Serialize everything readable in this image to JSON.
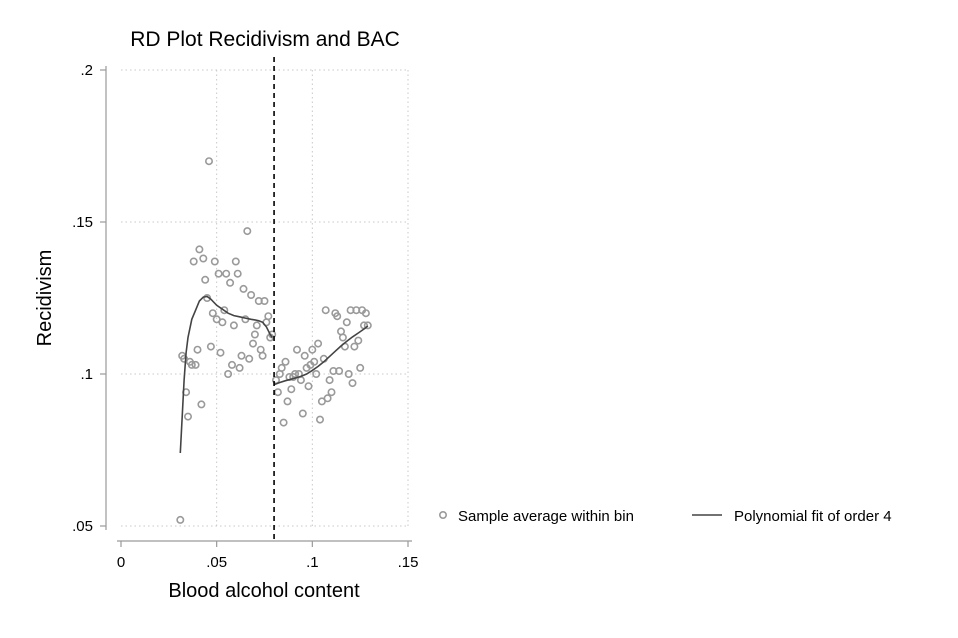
{
  "chart_data": {
    "type": "scatter",
    "title": "RD Plot Recidivism and BAC",
    "xlabel": "Blood alcohol content",
    "ylabel": "Recidivism",
    "xlim": [
      0,
      0.15
    ],
    "ylim": [
      0.05,
      0.2
    ],
    "x_ticks": [
      0,
      0.05,
      0.1,
      0.15
    ],
    "x_tick_labels": [
      "0",
      ".05",
      ".1",
      ".15"
    ],
    "y_ticks": [
      0.05,
      0.1,
      0.15,
      0.2
    ],
    "y_tick_labels": [
      ".05",
      ".1",
      ".15",
      ".2"
    ],
    "grid": true,
    "cutoff": 0.08,
    "legend_position": "right",
    "colors": {
      "points": "#9a9a9a",
      "fit": "#444444",
      "cutoff": "#000000"
    },
    "series": [
      {
        "name": "Sample average within bin",
        "type": "scatter",
        "points": [
          [
            0.031,
            0.052
          ],
          [
            0.032,
            0.106
          ],
          [
            0.033,
            0.105
          ],
          [
            0.034,
            0.094
          ],
          [
            0.035,
            0.086
          ],
          [
            0.036,
            0.104
          ],
          [
            0.037,
            0.103
          ],
          [
            0.038,
            0.137
          ],
          [
            0.039,
            0.103
          ],
          [
            0.04,
            0.108
          ],
          [
            0.041,
            0.141
          ],
          [
            0.042,
            0.09
          ],
          [
            0.043,
            0.138
          ],
          [
            0.044,
            0.131
          ],
          [
            0.045,
            0.125
          ],
          [
            0.046,
            0.17
          ],
          [
            0.047,
            0.109
          ],
          [
            0.048,
            0.12
          ],
          [
            0.049,
            0.137
          ],
          [
            0.05,
            0.118
          ],
          [
            0.051,
            0.133
          ],
          [
            0.052,
            0.107
          ],
          [
            0.053,
            0.117
          ],
          [
            0.054,
            0.121
          ],
          [
            0.055,
            0.133
          ],
          [
            0.056,
            0.1
          ],
          [
            0.057,
            0.13
          ],
          [
            0.058,
            0.103
          ],
          [
            0.059,
            0.116
          ],
          [
            0.06,
            0.137
          ],
          [
            0.061,
            0.133
          ],
          [
            0.062,
            0.102
          ],
          [
            0.063,
            0.106
          ],
          [
            0.064,
            0.128
          ],
          [
            0.065,
            0.118
          ],
          [
            0.066,
            0.147
          ],
          [
            0.067,
            0.105
          ],
          [
            0.068,
            0.126
          ],
          [
            0.069,
            0.11
          ],
          [
            0.07,
            0.113
          ],
          [
            0.071,
            0.116
          ],
          [
            0.072,
            0.124
          ],
          [
            0.073,
            0.108
          ],
          [
            0.074,
            0.106
          ],
          [
            0.075,
            0.124
          ],
          [
            0.076,
            0.117
          ],
          [
            0.077,
            0.119
          ],
          [
            0.078,
            0.112
          ],
          [
            0.079,
            0.113
          ],
          [
            0.081,
            0.098
          ],
          [
            0.082,
            0.094
          ],
          [
            0.083,
            0.1
          ],
          [
            0.084,
            0.102
          ],
          [
            0.085,
            0.084
          ],
          [
            0.086,
            0.104
          ],
          [
            0.087,
            0.091
          ],
          [
            0.088,
            0.099
          ],
          [
            0.089,
            0.095
          ],
          [
            0.09,
            0.099
          ],
          [
            0.091,
            0.1
          ],
          [
            0.092,
            0.108
          ],
          [
            0.093,
            0.1
          ],
          [
            0.094,
            0.098
          ],
          [
            0.095,
            0.087
          ],
          [
            0.096,
            0.106
          ],
          [
            0.097,
            0.102
          ],
          [
            0.098,
            0.096
          ],
          [
            0.099,
            0.103
          ],
          [
            0.1,
            0.108
          ],
          [
            0.101,
            0.104
          ],
          [
            0.102,
            0.1
          ],
          [
            0.103,
            0.11
          ],
          [
            0.104,
            0.085
          ],
          [
            0.105,
            0.091
          ],
          [
            0.106,
            0.105
          ],
          [
            0.107,
            0.121
          ],
          [
            0.108,
            0.092
          ],
          [
            0.109,
            0.098
          ],
          [
            0.11,
            0.094
          ],
          [
            0.111,
            0.101
          ],
          [
            0.112,
            0.12
          ],
          [
            0.113,
            0.119
          ],
          [
            0.114,
            0.101
          ],
          [
            0.115,
            0.114
          ],
          [
            0.116,
            0.112
          ],
          [
            0.117,
            0.109
          ],
          [
            0.118,
            0.117
          ],
          [
            0.119,
            0.1
          ],
          [
            0.12,
            0.121
          ],
          [
            0.121,
            0.097
          ],
          [
            0.122,
            0.109
          ],
          [
            0.123,
            0.121
          ],
          [
            0.124,
            0.111
          ],
          [
            0.125,
            0.102
          ],
          [
            0.126,
            0.121
          ],
          [
            0.127,
            0.116
          ],
          [
            0.128,
            0.12
          ],
          [
            0.129,
            0.116
          ]
        ]
      },
      {
        "name": "Polynomial fit of order 4",
        "type": "line",
        "segments": [
          [
            [
              0.031,
              0.074
            ],
            [
              0.032,
              0.086
            ],
            [
              0.033,
              0.098
            ],
            [
              0.034,
              0.107
            ],
            [
              0.035,
              0.112
            ],
            [
              0.037,
              0.118
            ],
            [
              0.039,
              0.121
            ],
            [
              0.041,
              0.124
            ],
            [
              0.043,
              0.1253
            ],
            [
              0.045,
              0.1255
            ],
            [
              0.047,
              0.1246
            ],
            [
              0.05,
              0.1226
            ],
            [
              0.053,
              0.1213
            ],
            [
              0.056,
              0.12
            ],
            [
              0.059,
              0.1192
            ],
            [
              0.062,
              0.1188
            ],
            [
              0.065,
              0.1184
            ],
            [
              0.068,
              0.118
            ],
            [
              0.07,
              0.1178
            ],
            [
              0.072,
              0.1175
            ],
            [
              0.074,
              0.117
            ],
            [
              0.076,
              0.1155
            ],
            [
              0.078,
              0.113
            ],
            [
              0.079,
              0.112
            ]
          ],
          [
            [
              0.08,
              0.0965
            ],
            [
              0.083,
              0.0972
            ],
            [
              0.086,
              0.0978
            ],
            [
              0.09,
              0.0985
            ],
            [
              0.094,
              0.0992
            ],
            [
              0.097,
              0.1
            ],
            [
              0.1,
              0.1012
            ],
            [
              0.103,
              0.1025
            ],
            [
              0.106,
              0.104
            ],
            [
              0.109,
              0.1058
            ],
            [
              0.112,
              0.1075
            ],
            [
              0.115,
              0.1092
            ],
            [
              0.118,
              0.1108
            ],
            [
              0.121,
              0.1122
            ],
            [
              0.124,
              0.1135
            ],
            [
              0.127,
              0.1148
            ],
            [
              0.129,
              0.1158
            ]
          ]
        ]
      }
    ]
  }
}
